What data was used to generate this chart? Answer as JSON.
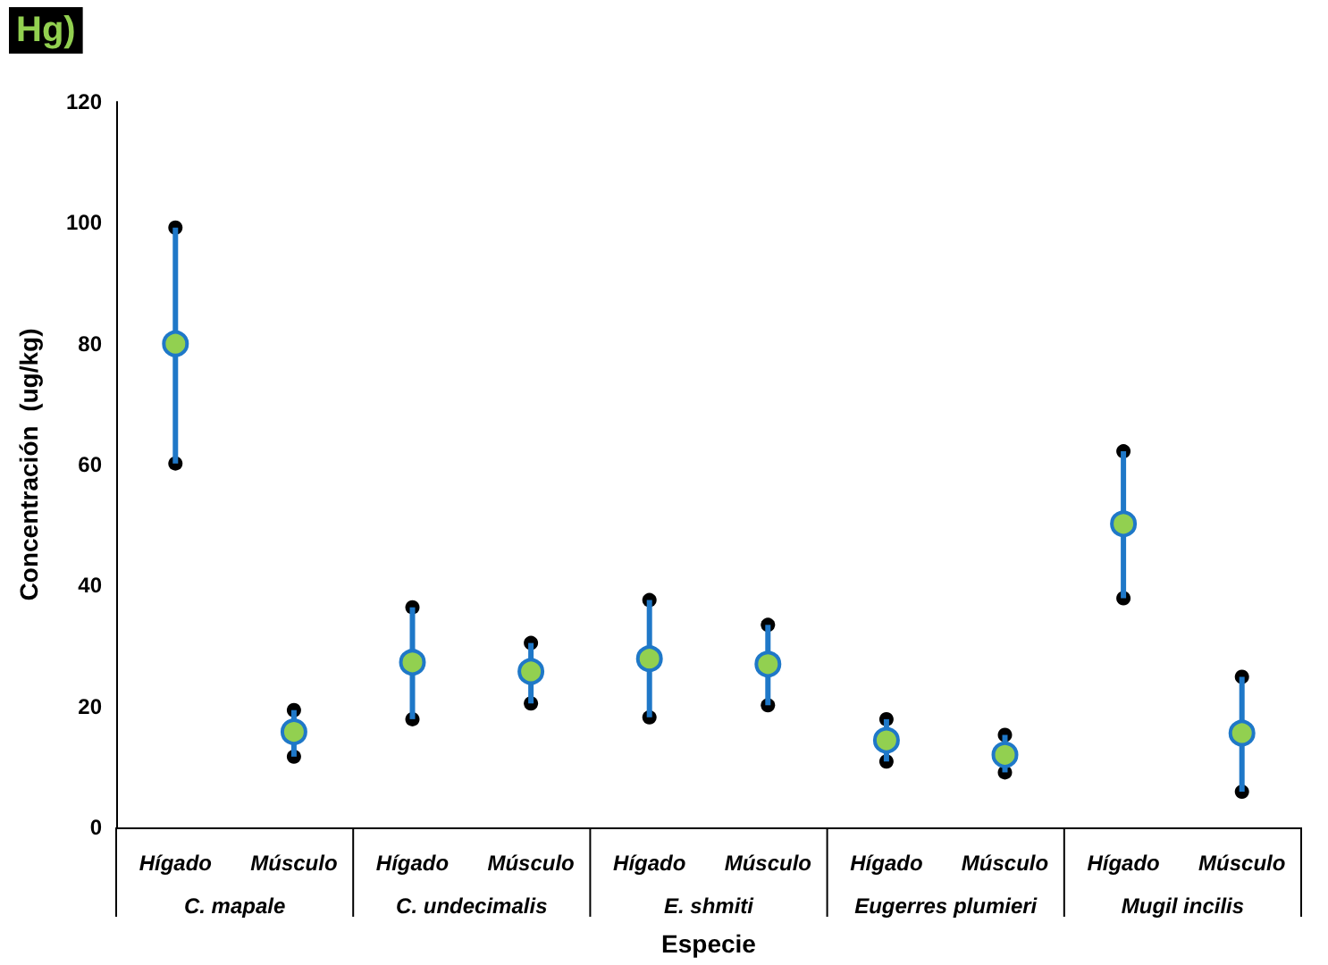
{
  "chart_data": {
    "type": "scatter",
    "title": "Hg)",
    "xlabel": "Especie",
    "ylabel": "Concentración  (ug/kg)",
    "categories": [
      "Hígado",
      "Músculo",
      "Hígado",
      "Músculo",
      "Hígado",
      "Músculo",
      "Hígado",
      "Músculo",
      "Hígado",
      "Músculo"
    ],
    "annotations": [
      "C. mapale",
      "C. undecimalis",
      "E. shmiti",
      "Eugerres plumieri",
      "Mugil incilis"
    ],
    "series": [
      {
        "color": "#92d050",
        "values": [
          80,
          15.8,
          27.3,
          25.8,
          27.9,
          27,
          14.4,
          12,
          50.2,
          15.6
        ],
        "errors": [
          [
            60.2,
            99.2
          ],
          [
            11.7,
            19.4
          ],
          [
            17.9,
            36.4
          ],
          [
            20.5,
            30.5
          ],
          [
            18.2,
            37.6
          ],
          [
            20.2,
            33.5
          ],
          [
            10.9,
            17.9
          ],
          [
            9.1,
            15.3
          ],
          [
            37.9,
            62.2
          ],
          [
            5.9,
            24.9
          ]
        ]
      }
    ],
    "ylim": [
      0,
      120
    ],
    "yticks": [
      0,
      20,
      40,
      60,
      80,
      100,
      120
    ],
    "grid": false,
    "marker": "circle"
  }
}
